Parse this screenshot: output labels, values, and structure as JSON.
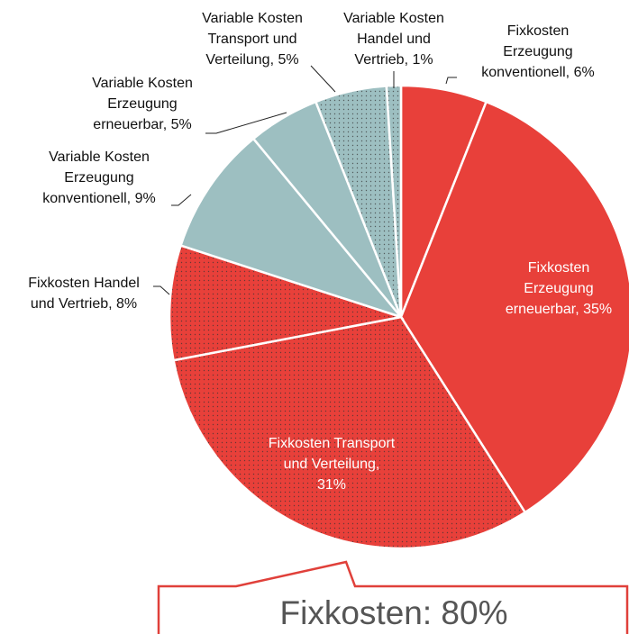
{
  "chart_data": {
    "type": "pie",
    "labels": [
      [
        "Fixkosten",
        "Erzeugung",
        "konventionell, 6%"
      ],
      [
        "Fixkosten",
        "Erzeugung",
        "erneuerbar, 35%"
      ],
      [
        "Fixkosten Transport",
        "und Verteilung,",
        "31%"
      ],
      [
        "Fixkosten Handel",
        "und Vertrieb, 8%"
      ],
      [
        "Variable Kosten",
        "Erzeugung",
        "konventionell, 9%"
      ],
      [
        "Variable Kosten",
        "Erzeugung",
        "erneuerbar, 5%"
      ],
      [
        "Variable Kosten",
        "Transport und",
        "Verteilung, 5%"
      ],
      [
        "Variable Kosten",
        "Handel und",
        "Vertrieb, 1%"
      ]
    ],
    "values": [
      6,
      35,
      31,
      8,
      9,
      5,
      5,
      1
    ],
    "colors": [
      "#e8403a",
      "#e8403a",
      "#e8403a",
      "#e8403a",
      "#9dbfc1",
      "#9dbfc1",
      "#9dbfc1",
      "#9dbfc1"
    ],
    "patterns": [
      "solid",
      "solid",
      "dotted",
      "dotted",
      "solid",
      "solid",
      "dotted",
      "dotted"
    ],
    "callout": "Fixkosten: 80%"
  }
}
